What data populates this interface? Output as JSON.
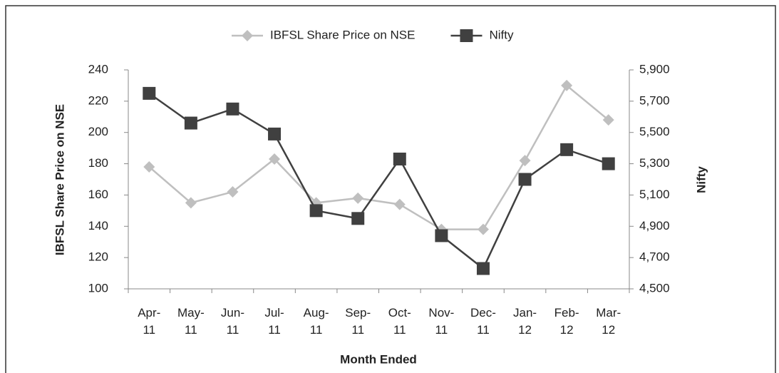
{
  "chart_data": {
    "type": "line",
    "xlabel": "Month Ended",
    "ylabel": "IBFSL Share Price on NSE",
    "y2label": "Nifty",
    "categories": [
      "Apr-11",
      "May-11",
      "Jun-11",
      "Jul-11",
      "Aug-11",
      "Sep-11",
      "Oct-11",
      "Nov-11",
      "Dec-11",
      "Jan-12",
      "Feb-12",
      "Mar-12"
    ],
    "series": [
      {
        "name": "IBFSL Share Price on NSE",
        "color": "#bfbfbf",
        "marker": "diamond",
        "axis": "y",
        "values": [
          178,
          155,
          162,
          183,
          155,
          158,
          154,
          138,
          138,
          182,
          230,
          208
        ]
      },
      {
        "name": "Nifty",
        "color": "#404040",
        "marker": "square",
        "axis": "y2",
        "values": [
          5750,
          5560,
          5650,
          5490,
          5000,
          4950,
          5330,
          4840,
          4630,
          5200,
          5390,
          5300
        ]
      }
    ],
    "ylim": [
      100,
      240
    ],
    "yticks": [
      100,
      120,
      140,
      160,
      180,
      200,
      220,
      240
    ],
    "y2lim": [
      4500,
      5900
    ],
    "y2ticks": [
      {
        "value": 4500,
        "label": "4,500"
      },
      {
        "value": 4700,
        "label": "4,700"
      },
      {
        "value": 4900,
        "label": "4,900"
      },
      {
        "value": 5100,
        "label": "5,100"
      },
      {
        "value": 5300,
        "label": "5,300"
      },
      {
        "value": 5500,
        "label": "5,500"
      },
      {
        "value": 5700,
        "label": "5,700"
      },
      {
        "value": 5900,
        "label": "5,900"
      }
    ],
    "legend": "top"
  }
}
